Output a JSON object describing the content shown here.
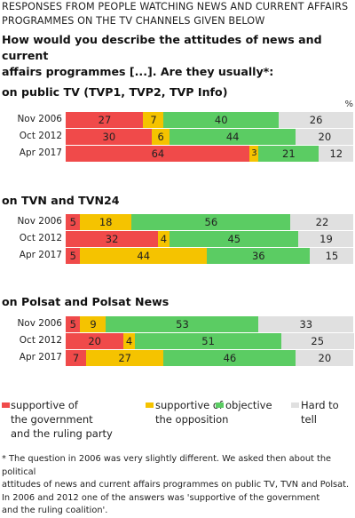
{
  "header": {
    "subtitle_line1": "RESPONSES FROM PEOPLE WATCHING NEWS AND CURRENT AFFAIRS",
    "subtitle_line2": "PROGRAMMES ON THE TV CHANNELS GIVEN BELOW",
    "question_line1": "How would you describe the attitudes of news and current",
    "question_line2": "affairs programmes [...]. Are they usually*:"
  },
  "percent_sign": "%",
  "colors": {
    "supportive_gov": "#f04a4a",
    "supportive_opp": "#f5c300",
    "objective": "#5bcc63",
    "hard": "#e0e0e0"
  },
  "chart_data": {
    "type": "bar",
    "orientation": "horizontal",
    "stacked": true,
    "unit": "%",
    "series_names": [
      "supportive of the government and the ruling party",
      "supportive of the opposition",
      "objective",
      "Hard to tell"
    ],
    "groups": [
      {
        "title": "on public TV (TVP1, TVP2, TVP Info)",
        "rows": [
          {
            "label": "Nov  2006",
            "values": [
              27,
              7,
              40,
              26
            ]
          },
          {
            "label": "Oct  2012",
            "values": [
              30,
              6,
              44,
              20
            ]
          },
          {
            "label": "Apr  2017",
            "values": [
              64,
              3,
              21,
              12
            ]
          }
        ]
      },
      {
        "title": "on TVN and TVN24",
        "rows": [
          {
            "label": "Nov  2006",
            "values": [
              5,
              18,
              56,
              22
            ]
          },
          {
            "label": "Oct  2012",
            "values": [
              32,
              4,
              45,
              19
            ]
          },
          {
            "label": "Apr  2017",
            "values": [
              5,
              44,
              36,
              15
            ]
          }
        ]
      },
      {
        "title": "on Polsat and Polsat News",
        "rows": [
          {
            "label": "Nov  2006",
            "values": [
              5,
              9,
              53,
              33
            ]
          },
          {
            "label": "Oct  2012",
            "values": [
              20,
              4,
              51,
              25
            ]
          },
          {
            "label": "Apr  2017",
            "values": [
              7,
              27,
              46,
              20
            ]
          }
        ]
      }
    ]
  },
  "legend": {
    "gov_line1": "supportive of",
    "gov_line2": "the government",
    "gov_line3": "and the ruling party",
    "opp_line1": "supportive of",
    "opp_line2": "the opposition",
    "objective": "objective",
    "hard": "Hard to tell"
  },
  "footnote": {
    "line1": "* The question in 2006 was very slightly different.  We asked then about the political",
    "line2": "attitudes of news and current affairs programmes on public TV, TVN and Polsat.",
    "line3": "In 2006 and 2012 one of the answers was 'supportive of the government",
    "line4": "and the ruling coalition'."
  }
}
